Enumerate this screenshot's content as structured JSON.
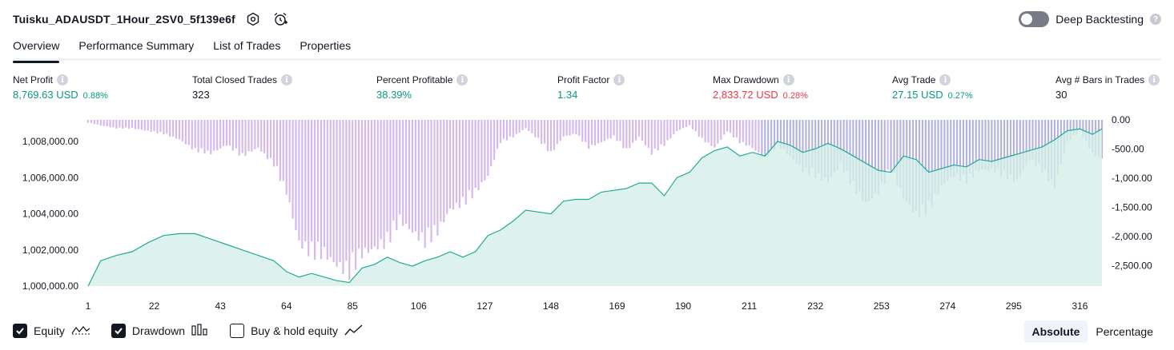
{
  "header": {
    "title": "Tuisku_ADAUSDT_1Hour_2SV0_5f139e6f",
    "deep_backtesting_label": "Deep Backtesting",
    "deep_backtesting_on": false
  },
  "tabs": [
    {
      "label": "Overview",
      "active": true
    },
    {
      "label": "Performance Summary",
      "active": false
    },
    {
      "label": "List of Trades",
      "active": false
    },
    {
      "label": "Properties",
      "active": false
    }
  ],
  "metrics": {
    "net_profit": {
      "label": "Net Profit",
      "value": "8,769.63 USD",
      "pct": "0.88%"
    },
    "total_closed_trades": {
      "label": "Total Closed Trades",
      "value": "323"
    },
    "percent_profitable": {
      "label": "Percent Profitable",
      "value": "38.39%"
    },
    "profit_factor": {
      "label": "Profit Factor",
      "value": "1.34"
    },
    "max_drawdown": {
      "label": "Max Drawdown",
      "value": "2,833.72 USD",
      "pct": "0.28%"
    },
    "avg_trade": {
      "label": "Avg Trade",
      "value": "27.15 USD",
      "pct": "0.27%"
    },
    "avg_bars": {
      "label": "Avg # Bars in Trades",
      "value": "30"
    }
  },
  "legend": {
    "equity": {
      "label": "Equity",
      "checked": true
    },
    "drawdown": {
      "label": "Drawdown",
      "checked": true
    },
    "buy_hold": {
      "label": "Buy & hold equity",
      "checked": false
    }
  },
  "mode": {
    "absolute": "Absolute",
    "percentage": "Percentage",
    "selected": "absolute"
  },
  "colors": {
    "equity_line": "#22ab94",
    "equity_fill": "#d4efe8",
    "drawdown_bar": "#d6b8ec",
    "drawdown_bar_over": "#b3b3dd",
    "positive": "#089981",
    "negative": "#f23645"
  },
  "chart_data": {
    "type": "line",
    "x_ticks": [
      1,
      22,
      43,
      64,
      85,
      106,
      127,
      148,
      169,
      190,
      211,
      232,
      253,
      274,
      295,
      316
    ],
    "left_axis": {
      "ticks": [
        "1,000,000.00",
        "1,002,000.00",
        "1,004,000.00",
        "1,006,000.00",
        "1,008,000.00"
      ],
      "tick_values": [
        1000000,
        1002000,
        1004000,
        1006000,
        1008000
      ],
      "range": [
        1000000,
        1009200
      ]
    },
    "right_axis": {
      "ticks": [
        "0.00",
        "-500.00",
        "-1,000.00",
        "-1,500.00",
        "-2,000.00",
        "-2,500.00"
      ],
      "tick_values": [
        0,
        -500,
        -1000,
        -1500,
        -2000,
        -2500
      ],
      "range": [
        -2850,
        0
      ]
    },
    "series": [
      {
        "name": "Equity",
        "x": [
          1,
          5,
          10,
          15,
          20,
          25,
          30,
          35,
          40,
          45,
          50,
          55,
          60,
          64,
          68,
          72,
          76,
          80,
          84,
          88,
          92,
          96,
          100,
          104,
          108,
          112,
          116,
          120,
          124,
          128,
          132,
          136,
          140,
          144,
          148,
          152,
          156,
          160,
          164,
          168,
          172,
          176,
          180,
          184,
          188,
          192,
          196,
          200,
          204,
          208,
          212,
          216,
          220,
          224,
          228,
          232,
          236,
          240,
          244,
          248,
          252,
          256,
          260,
          264,
          268,
          272,
          276,
          280,
          284,
          288,
          292,
          296,
          300,
          304,
          308,
          312,
          316,
          320,
          323
        ],
        "values": [
          1000000,
          1001400,
          1001700,
          1001900,
          1002400,
          1002800,
          1002900,
          1002900,
          1002600,
          1002300,
          1002000,
          1001700,
          1001400,
          1000800,
          1000500,
          1000700,
          1000500,
          1000300,
          1000200,
          1001000,
          1001200,
          1001600,
          1001300,
          1001100,
          1001400,
          1001600,
          1001900,
          1001600,
          1001900,
          1002800,
          1003100,
          1003600,
          1004200,
          1004100,
          1004000,
          1004700,
          1004800,
          1004800,
          1005200,
          1005300,
          1005400,
          1005700,
          1005700,
          1005000,
          1006000,
          1006300,
          1007100,
          1007500,
          1007700,
          1007200,
          1007400,
          1007200,
          1008000,
          1007800,
          1007400,
          1007600,
          1007900,
          1007600,
          1007200,
          1006800,
          1006400,
          1006300,
          1007200,
          1007000,
          1006300,
          1006500,
          1006700,
          1006600,
          1007000,
          1006900,
          1007100,
          1007300,
          1007500,
          1007700,
          1008100,
          1008600,
          1008700,
          1008400,
          1008700
        ]
      },
      {
        "name": "Drawdown",
        "x": [
          1,
          5,
          10,
          15,
          20,
          25,
          30,
          35,
          40,
          45,
          50,
          55,
          60,
          64,
          68,
          72,
          76,
          80,
          84,
          88,
          92,
          96,
          100,
          104,
          108,
          112,
          116,
          120,
          124,
          128,
          132,
          136,
          140,
          144,
          148,
          152,
          156,
          160,
          164,
          168,
          172,
          176,
          180,
          184,
          188,
          192,
          196,
          200,
          204,
          208,
          212,
          216,
          220,
          224,
          228,
          232,
          236,
          240,
          244,
          248,
          252,
          256,
          260,
          264,
          268,
          272,
          276,
          280,
          284,
          288,
          292,
          296,
          300,
          304,
          308,
          312,
          316,
          320,
          323
        ],
        "values": [
          -50,
          -100,
          -150,
          -150,
          -200,
          -250,
          -350,
          -550,
          -600,
          -450,
          -650,
          -500,
          -800,
          -1300,
          -2200,
          -2400,
          -2400,
          -2600,
          -2750,
          -2400,
          -2300,
          -2200,
          -1800,
          -2000,
          -2200,
          -2000,
          -1600,
          -1500,
          -1300,
          -1000,
          -400,
          -300,
          -150,
          -350,
          -600,
          -300,
          -250,
          -500,
          -400,
          -300,
          -550,
          -300,
          -600,
          -450,
          -200,
          -100,
          -350,
          -500,
          -200,
          -400,
          -500,
          -700,
          -450,
          -650,
          -900,
          -1000,
          -1100,
          -800,
          -1200,
          -1500,
          -1300,
          -900,
          -1400,
          -1700,
          -1600,
          -1200,
          -1000,
          -1100,
          -900,
          -900,
          -1000,
          -1100,
          -700,
          -900,
          -1200,
          -400,
          -200,
          -600,
          -700
        ]
      }
    ],
    "grid": false,
    "legend_position": "bottom-left"
  }
}
